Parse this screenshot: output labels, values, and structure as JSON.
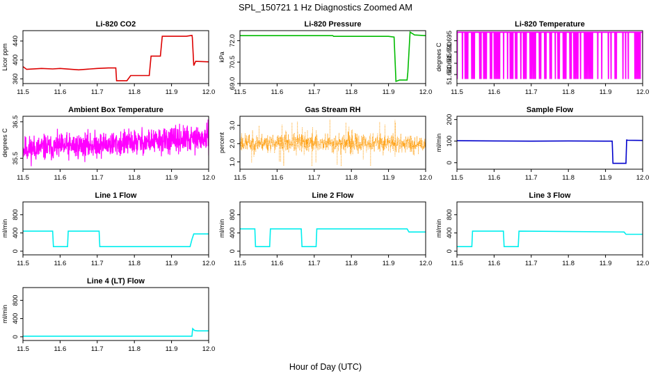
{
  "figure": {
    "title": "SPL_150721  1 Hz Diagnostics Zoomed AM",
    "xlabel": "Hour of Day (UTC)"
  },
  "chart_data": [
    {
      "type": "line",
      "title": "Li-820 CO2",
      "ylabel": "Licor ppm",
      "color": "#dd0000",
      "xlim": [
        11.5,
        12.0
      ],
      "ylim": [
        350,
        462
      ],
      "xticks": [
        "11.5",
        "11.6",
        "11.7",
        "11.8",
        "11.9",
        "12.0"
      ],
      "yticks": [
        360,
        400,
        440
      ],
      "series": [
        {
          "x": [
            11.5,
            11.51,
            11.55,
            11.58,
            11.6,
            11.65,
            11.7,
            11.73,
            11.75,
            11.752,
            11.78,
            11.79,
            11.8,
            11.81,
            11.84,
            11.845,
            11.87,
            11.875,
            11.94,
            11.955,
            11.956,
            11.96,
            11.965,
            12.0
          ],
          "y": [
            386,
            380,
            382,
            381,
            382,
            379,
            382,
            383,
            383,
            356,
            356,
            367,
            367,
            367,
            367,
            408,
            408,
            450,
            450,
            452,
            448,
            388,
            397,
            396
          ]
        }
      ]
    },
    {
      "type": "line",
      "title": "Li-820 Pressure",
      "ylabel": "kPa",
      "color": "#00bb00",
      "xlim": [
        11.5,
        12.0
      ],
      "ylim": [
        69.0,
        72.7
      ],
      "xticks": [
        "11.5",
        "11.6",
        "11.7",
        "11.8",
        "11.9",
        "12.0"
      ],
      "yticks": [
        "69.0",
        "70.5",
        "72.0"
      ],
      "series": [
        {
          "x": [
            11.5,
            11.6,
            11.7,
            11.75,
            11.752,
            11.8,
            11.85,
            11.9,
            11.915,
            11.92,
            11.93,
            11.95,
            11.952,
            11.958,
            11.97,
            12.0
          ],
          "y": [
            72.35,
            72.35,
            72.35,
            72.35,
            72.3,
            72.3,
            72.3,
            72.3,
            72.25,
            69.15,
            69.25,
            69.25,
            69.8,
            72.6,
            72.4,
            72.35
          ]
        }
      ]
    },
    {
      "type": "line",
      "title": "Li-820 Temperature",
      "ylabel": "degrees C",
      "color": "#ff00ff",
      "xlim": [
        11.5,
        12.0
      ],
      "ylim": [
        51.676,
        51.6995
      ],
      "xticks": [
        "11.5",
        "11.6",
        "11.7",
        "11.8",
        "11.9",
        "12.0"
      ],
      "yticks": [
        "51.680",
        "51.685",
        "51.690",
        "51.695"
      ],
      "noise": {
        "kind": "binary",
        "low": 51.678,
        "high": 51.6988,
        "n": 140,
        "seed": 7
      }
    },
    {
      "type": "line",
      "title": "Ambient Box Temperature",
      "ylabel": "degrees C",
      "color": "#ff00ff",
      "xlim": [
        11.5,
        12.0
      ],
      "ylim": [
        35.2,
        36.65
      ],
      "xticks": [
        "11.5",
        "11.6",
        "11.7",
        "11.8",
        "11.9",
        "12.0"
      ],
      "yticks": [
        "35.5",
        "36.5"
      ],
      "noise": {
        "kind": "band",
        "centerStart": 35.75,
        "centerEnd": 36.05,
        "amp": 0.32,
        "n": 900,
        "seed": 11
      }
    },
    {
      "type": "scatter",
      "title": "Gas Stream RH",
      "ylabel": "percent",
      "color": "#ff9900",
      "xlim": [
        11.5,
        12.0
      ],
      "ylim": [
        0.6,
        3.5
      ],
      "xticks": [
        "11.5",
        "11.6",
        "11.7",
        "11.8",
        "11.9",
        "12.0"
      ],
      "yticks": [
        "1.0",
        "2.0",
        "3.0"
      ],
      "noise": {
        "kind": "band",
        "centerStart": 2.05,
        "centerEnd": 2.0,
        "amp": 0.45,
        "n": 900,
        "seed": 23,
        "spikes": 40
      }
    },
    {
      "type": "line",
      "title": "Sample Flow",
      "ylabel": "ml/min",
      "color": "#0000cc",
      "xlim": [
        11.5,
        12.0
      ],
      "ylim": [
        -30,
        215
      ],
      "xticks": [
        "11.5",
        "11.6",
        "11.7",
        "11.8",
        "11.9",
        "12.0"
      ],
      "yticks": [
        0,
        100,
        200
      ],
      "series": [
        {
          "x": [
            11.5,
            11.6,
            11.7,
            11.8,
            11.9,
            11.918,
            11.92,
            11.955,
            11.957,
            11.96,
            12.0
          ],
          "y": [
            102,
            101,
            100,
            101,
            100,
            100,
            -3,
            -3,
            105,
            104,
            103
          ]
        }
      ]
    },
    {
      "type": "line",
      "title": "Line 1 Flow",
      "ylabel": "ml/min",
      "color": "#00eeee",
      "xlim": [
        11.5,
        12.0
      ],
      "ylim": [
        -80,
        1080
      ],
      "xticks": [
        "11.5",
        "11.6",
        "11.7",
        "11.8",
        "11.9",
        "12.0"
      ],
      "yticks": [
        0,
        400,
        800
      ],
      "series": [
        {
          "x": [
            11.5,
            11.58,
            11.582,
            11.62,
            11.622,
            11.705,
            11.707,
            11.95,
            11.955,
            11.96,
            12.0
          ],
          "y": [
            440,
            440,
            100,
            100,
            440,
            440,
            100,
            100,
            260,
            380,
            380
          ]
        }
      ]
    },
    {
      "type": "line",
      "title": "Line 2 Flow",
      "ylabel": "ml/min",
      "color": "#00eeee",
      "xlim": [
        11.5,
        12.0
      ],
      "ylim": [
        -80,
        1080
      ],
      "xticks": [
        "11.5",
        "11.6",
        "11.7",
        "11.8",
        "11.9",
        "12.0"
      ],
      "yticks": [
        0,
        400,
        800
      ],
      "series": [
        {
          "x": [
            11.5,
            11.54,
            11.542,
            11.58,
            11.582,
            11.665,
            11.667,
            11.705,
            11.707,
            11.95,
            11.955,
            12.0
          ],
          "y": [
            490,
            490,
            100,
            100,
            490,
            490,
            100,
            100,
            490,
            490,
            420,
            420
          ]
        }
      ]
    },
    {
      "type": "line",
      "title": "Line 3 Flow",
      "ylabel": "ml/min",
      "color": "#00eeee",
      "xlim": [
        11.5,
        12.0
      ],
      "ylim": [
        -80,
        1080
      ],
      "xticks": [
        "11.5",
        "11.6",
        "11.7",
        "11.8",
        "11.9",
        "12.0"
      ],
      "yticks": [
        0,
        400,
        800
      ],
      "series": [
        {
          "x": [
            11.5,
            11.54,
            11.542,
            11.625,
            11.627,
            11.665,
            11.667,
            11.95,
            11.955,
            12.0
          ],
          "y": [
            100,
            100,
            440,
            440,
            100,
            100,
            440,
            420,
            370,
            370
          ]
        }
      ]
    },
    {
      "type": "line",
      "title": "Line 4 (LT) Flow",
      "ylabel": "ml/min",
      "color": "#00eeee",
      "xlim": [
        11.5,
        12.0
      ],
      "ylim": [
        -80,
        1080
      ],
      "xticks": [
        "11.5",
        "11.6",
        "11.7",
        "11.8",
        "11.9",
        "12.0"
      ],
      "yticks": [
        0,
        400,
        800
      ],
      "series": [
        {
          "x": [
            11.5,
            11.6,
            11.7,
            11.8,
            11.9,
            11.955,
            11.957,
            11.962,
            11.97,
            12.0
          ],
          "y": [
            15,
            15,
            15,
            15,
            15,
            15,
            180,
            140,
            130,
            130
          ]
        }
      ]
    }
  ]
}
